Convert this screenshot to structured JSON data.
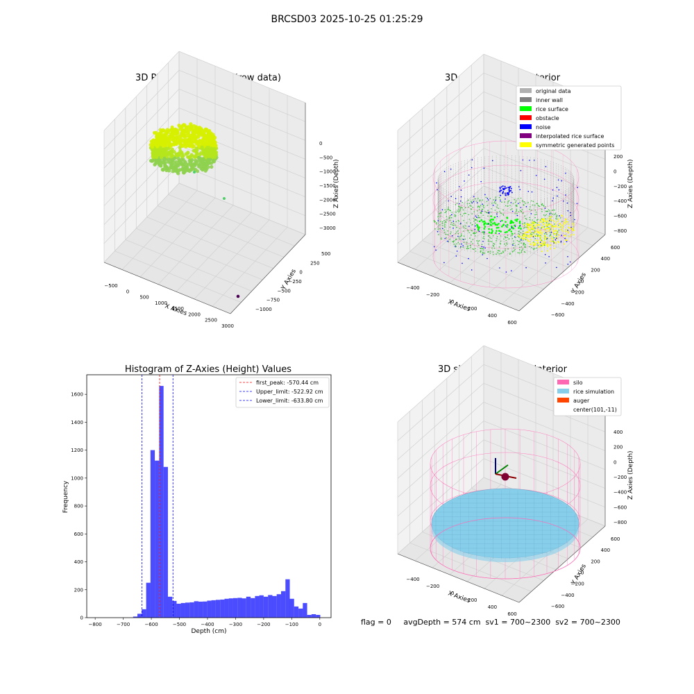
{
  "suptitle": "BRCSD03 2025-10-25 01:25:29",
  "status": "flag = 0     avgDepth = 574 cm  sv1 = 700~2300  sv2 = 700~2300",
  "chart_data": [
    {
      "panel": "top-left",
      "type": "scatter",
      "title": "3D Plot of Silo Interior(row data)",
      "xlabel": "X Axies",
      "ylabel": "Y Axies",
      "zlabel": "Z Axies (Depth)",
      "x_ticks": [
        "−500",
        "0",
        "500",
        "1000",
        "1500",
        "2000",
        "2500",
        "3000"
      ],
      "y_ticks": [
        "500",
        "250",
        "0",
        "−250",
        "−500",
        "−750",
        "−1000"
      ],
      "z_ticks": [
        "0",
        "−500",
        "−1000",
        "−1500",
        "−2000",
        "−2500",
        "−3000"
      ],
      "colors": {
        "surface_low": "#9acd32",
        "surface_high": "#ffff00",
        "outlier": "#4b0055"
      }
    },
    {
      "panel": "top-right",
      "type": "scatter",
      "title": "3D classify of Silo Interior",
      "xlabel": "X Axies",
      "ylabel": "Y Axies",
      "zlabel": "Z Axies (Depth)",
      "x_ticks": [
        "−400",
        "−200",
        "0",
        "200",
        "400",
        "600"
      ],
      "y_ticks": [
        "600",
        "400",
        "200",
        "0",
        "−200",
        "−400",
        "−600"
      ],
      "z_ticks": [
        "200",
        "0",
        "−200",
        "−400",
        "−600",
        "−800"
      ],
      "legend": [
        {
          "label": "original data",
          "color": "#b0b0b0"
        },
        {
          "label": "inner wall",
          "color": "#808080"
        },
        {
          "label": "rice surface",
          "color": "#00ff00"
        },
        {
          "label": "obstacle",
          "color": "#ff0000"
        },
        {
          "label": "noise",
          "color": "#0000ff"
        },
        {
          "label": "interpolated rice surface",
          "color": "#800080"
        },
        {
          "label": "symmetric generated points",
          "color": "#ffff00"
        }
      ]
    },
    {
      "panel": "bottom-left",
      "type": "bar",
      "title": "Histogram of Z-Axies (Height) Values",
      "xlabel": "Depth (cm)",
      "ylabel": "Frequency",
      "xlim": [
        -830,
        40
      ],
      "ylim": [
        0,
        1740
      ],
      "x_ticks": [
        -800,
        -700,
        -600,
        -500,
        -400,
        -300,
        -200,
        -100,
        0
      ],
      "y_ticks": [
        0,
        200,
        400,
        600,
        800,
        1000,
        1200,
        1400,
        1600
      ],
      "bin_width": 15.5,
      "bins": [
        [
          -665,
          8
        ],
        [
          -649.5,
          28
        ],
        [
          -634,
          60
        ],
        [
          -618.5,
          250
        ],
        [
          -603,
          1200
        ],
        [
          -587.5,
          1125
        ],
        [
          -572,
          1660
        ],
        [
          -556.5,
          1080
        ],
        [
          -541,
          150
        ],
        [
          -525.5,
          120
        ],
        [
          -510,
          100
        ],
        [
          -494.5,
          105
        ],
        [
          -479,
          108
        ],
        [
          -463.5,
          110
        ],
        [
          -448,
          118
        ],
        [
          -432.5,
          115
        ],
        [
          -417,
          116
        ],
        [
          -401.5,
          122
        ],
        [
          -386,
          125
        ],
        [
          -370.5,
          128
        ],
        [
          -355,
          130
        ],
        [
          -339.5,
          135
        ],
        [
          -324,
          138
        ],
        [
          -308.5,
          140
        ],
        [
          -293,
          142
        ],
        [
          -277.5,
          138
        ],
        [
          -262,
          150
        ],
        [
          -246.5,
          140
        ],
        [
          -231,
          155
        ],
        [
          -215.5,
          160
        ],
        [
          -200,
          150
        ],
        [
          -184.5,
          162
        ],
        [
          -169,
          155
        ],
        [
          -153.5,
          168
        ],
        [
          -138,
          190
        ],
        [
          -122.5,
          275
        ],
        [
          -107,
          135
        ],
        [
          -91.5,
          80
        ],
        [
          -76,
          65
        ],
        [
          -60.5,
          105
        ],
        [
          -45,
          20
        ],
        [
          -29.5,
          25
        ],
        [
          -14,
          20
        ]
      ],
      "bar_color": "#0000ff",
      "lines": [
        {
          "label": "first_peak: -570.44 cm",
          "x": -570.44,
          "color": "#ff0000"
        },
        {
          "label": "Upper_limit: -522.92 cm",
          "x": -522.92,
          "color": "#0000ff"
        },
        {
          "label": "Lower_limit: -633.80 cm",
          "x": -633.8,
          "color": "#0000ff"
        }
      ],
      "legend_position": "top-right"
    },
    {
      "panel": "bottom-right",
      "type": "scatter",
      "title": "3D simulation of Silo Interior",
      "xlabel": "X Axies",
      "ylabel": "Y Axies",
      "zlabel": "Z Axies (Depth)",
      "x_ticks": [
        "−400",
        "−200",
        "0",
        "200",
        "400",
        "600"
      ],
      "y_ticks": [
        "600",
        "400",
        "200",
        "0",
        "−200",
        "−400",
        "−600"
      ],
      "z_ticks": [
        "400",
        "200",
        "0",
        "−200",
        "−400",
        "−600",
        "−800"
      ],
      "legend": [
        {
          "label": "silo",
          "color": "#ff69b4"
        },
        {
          "label": "rice simulation",
          "color": "#87ceeb"
        },
        {
          "label": "auger",
          "color": "#ff4500"
        },
        {
          "label": "center(101,-11)",
          "color": ""
        }
      ]
    }
  ]
}
